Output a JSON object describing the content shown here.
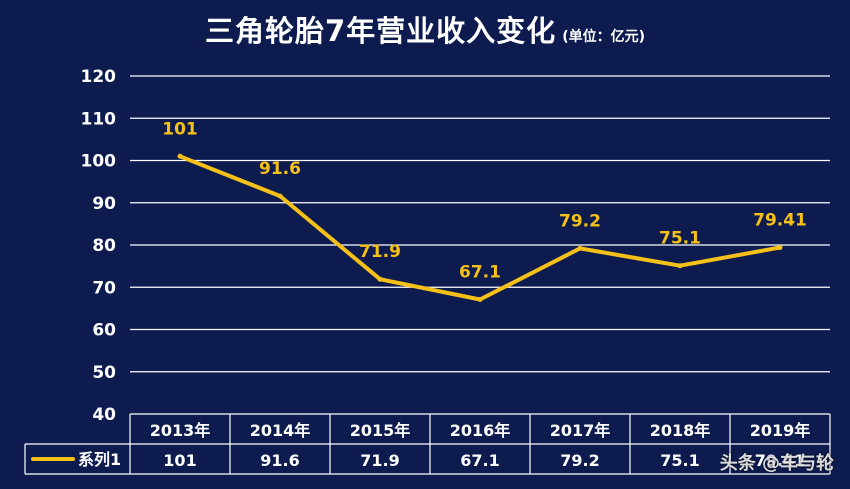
{
  "title": "三角轮胎7年营业收入变化",
  "subtitle": "(单位：亿元)",
  "watermark": "头条 @车与轮",
  "colors": {
    "background": "#0d1b4f",
    "line": "#f5c018",
    "grid": "#ffffff",
    "text": "#ffffff",
    "label": "#f5c018"
  },
  "chart_data": {
    "type": "line",
    "categories": [
      "2013年",
      "2014年",
      "2015年",
      "2016年",
      "2017年",
      "2018年",
      "2019年"
    ],
    "series": [
      {
        "name": "系列1",
        "values": [
          101,
          91.6,
          71.9,
          67.1,
          79.2,
          75.1,
          79.41
        ]
      }
    ],
    "data_labels": [
      "101",
      "91.6",
      "71.9",
      "67.1",
      "79.2",
      "75.1",
      "79.41"
    ],
    "table_values": [
      "101",
      "91.6",
      "71.9",
      "67.1",
      "79.2",
      "75.1",
      "79.41"
    ],
    "y_ticks": [
      40,
      50,
      60,
      70,
      80,
      90,
      100,
      110,
      120
    ],
    "ylim": [
      40,
      120
    ],
    "grid": true,
    "legend": "data-table-left",
    "xlabel": "",
    "ylabel": ""
  }
}
